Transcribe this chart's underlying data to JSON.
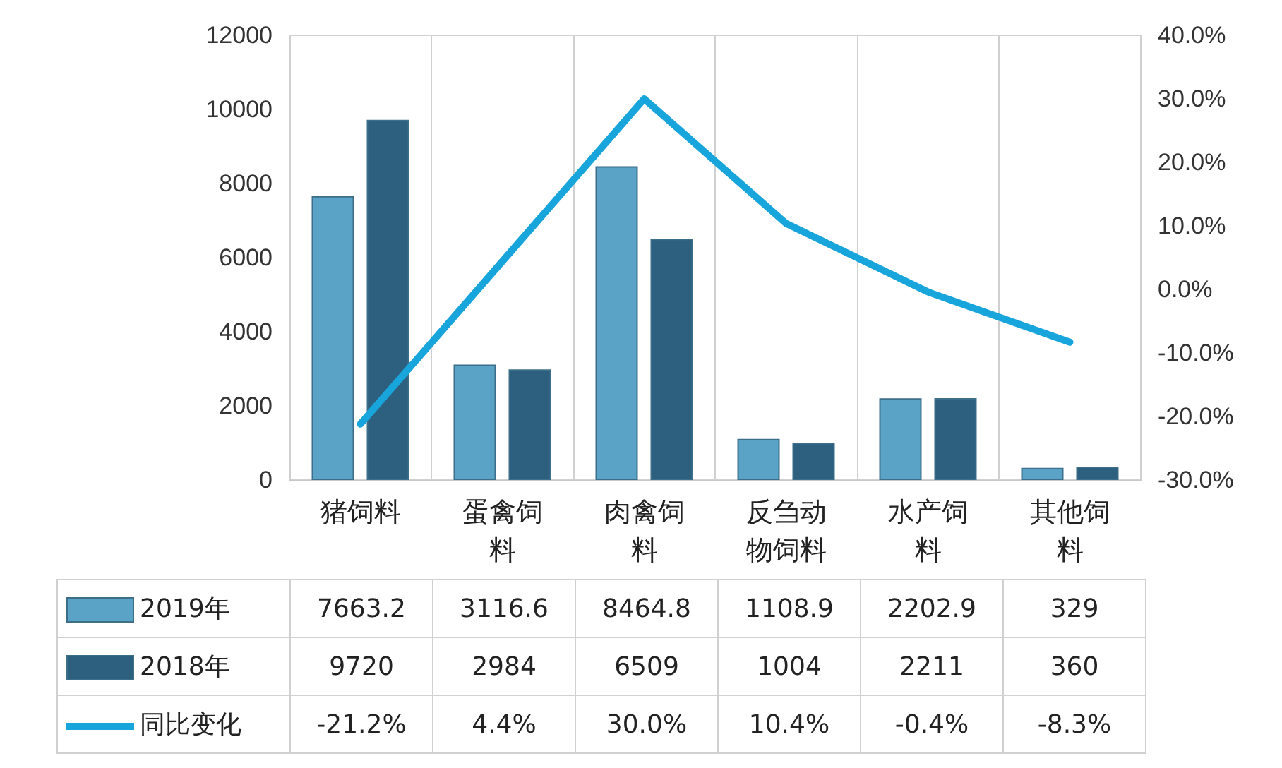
{
  "chart_data": {
    "type": "bar",
    "categories": [
      "猪饲料",
      "蛋禽饲料",
      "肉禽饲料",
      "反刍动物饲料",
      "水产饲料",
      "其他饲料"
    ],
    "series": [
      {
        "name": "2019年",
        "color": "#5ba3c6",
        "values": [
          7663.2,
          3116.6,
          8464.8,
          1108.9,
          2202.9,
          329
        ],
        "value_labels": [
          "7663.2",
          "3116.6",
          "8464.8",
          "1108.9",
          "2202.9",
          "329"
        ]
      },
      {
        "name": "2018年",
        "color": "#2d5f7e",
        "values": [
          9720,
          2984,
          6509,
          1004,
          2211,
          360
        ],
        "value_labels": [
          "9720",
          "2984",
          "6509",
          "1004",
          "2211",
          "360"
        ]
      },
      {
        "name": "同比变化",
        "type": "line",
        "axis": "y2",
        "color": "#17a5dc",
        "values": [
          -21.2,
          4.4,
          30.0,
          10.4,
          -0.4,
          -8.3
        ],
        "value_labels": [
          "-21.2%",
          "4.4%",
          "30.0%",
          "10.4%",
          "-0.4%",
          "-8.3%"
        ]
      }
    ],
    "ylim": [
      0,
      12000
    ],
    "yticks": [
      0,
      2000,
      4000,
      6000,
      8000,
      10000,
      12000
    ],
    "y2lim": [
      -30,
      40
    ],
    "y2ticks": [
      {
        "value": -30,
        "label": "-30.0%"
      },
      {
        "value": -20,
        "label": "-20.0%"
      },
      {
        "value": -10,
        "label": "-10.0%"
      },
      {
        "value": 0,
        "label": "0.0%"
      },
      {
        "value": 10,
        "label": "10.0%"
      },
      {
        "value": 20,
        "label": "20.0%"
      },
      {
        "value": 30,
        "label": "30.0%"
      },
      {
        "value": 40,
        "label": "40.0%"
      }
    ],
    "grid": "x",
    "legend": "bottom left",
    "line_style": "solid"
  }
}
